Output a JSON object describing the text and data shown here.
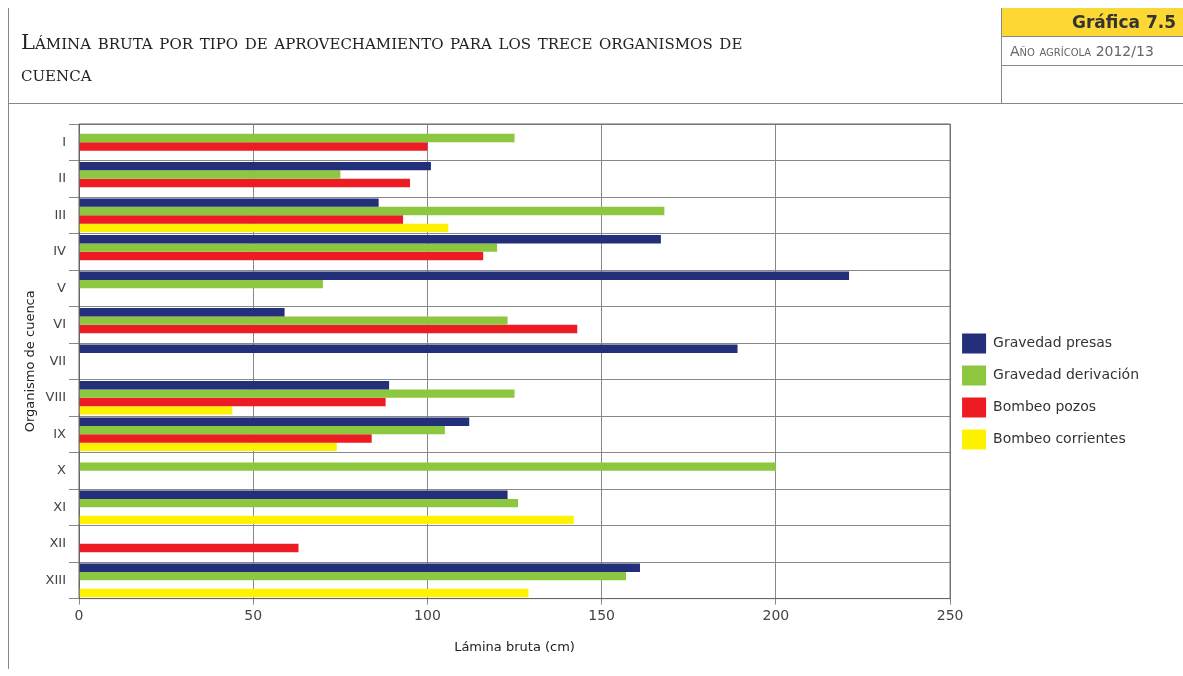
{
  "chart_data": {
    "type": "bar",
    "orientation": "horizontal",
    "title": "Lámina bruta por tipo de aprovechamiento para los trece organismos de cuenca",
    "subtitle": "Año agrícola 2012/13",
    "annotations": [
      "Gráfica 7.5"
    ],
    "xlabel": "Lámina bruta (cm)",
    "ylabel": "Organismo de cuenca",
    "categories": [
      "I",
      "II",
      "III",
      "IV",
      "V",
      "VI",
      "VII",
      "VIII",
      "IX",
      "X",
      "XI",
      "XII",
      "XIII"
    ],
    "series": [
      {
        "name": "Gravedad presas",
        "color": "#232f78",
        "values": [
          null,
          101,
          86,
          167,
          221,
          59,
          189,
          89,
          112,
          null,
          123,
          null,
          161
        ]
      },
      {
        "name": "Gravedad derivación",
        "color": "#8dc63f",
        "values": [
          125,
          75,
          168,
          120,
          70,
          123,
          null,
          125,
          105,
          200,
          126,
          null,
          157
        ]
      },
      {
        "name": "Bombeo pozos",
        "color": "#ed1c24",
        "values": [
          100,
          95,
          93,
          116,
          null,
          143,
          null,
          88,
          84,
          null,
          null,
          63,
          null
        ]
      },
      {
        "name": "Bombeo corrientes",
        "color": "#fff200",
        "values": [
          null,
          null,
          106,
          null,
          null,
          null,
          null,
          44,
          74,
          null,
          142,
          null,
          129
        ]
      }
    ],
    "xlim": [
      0,
      250
    ],
    "xticks": [
      0,
      50,
      100,
      150,
      200,
      250
    ],
    "grid": true,
    "legend": "right"
  }
}
